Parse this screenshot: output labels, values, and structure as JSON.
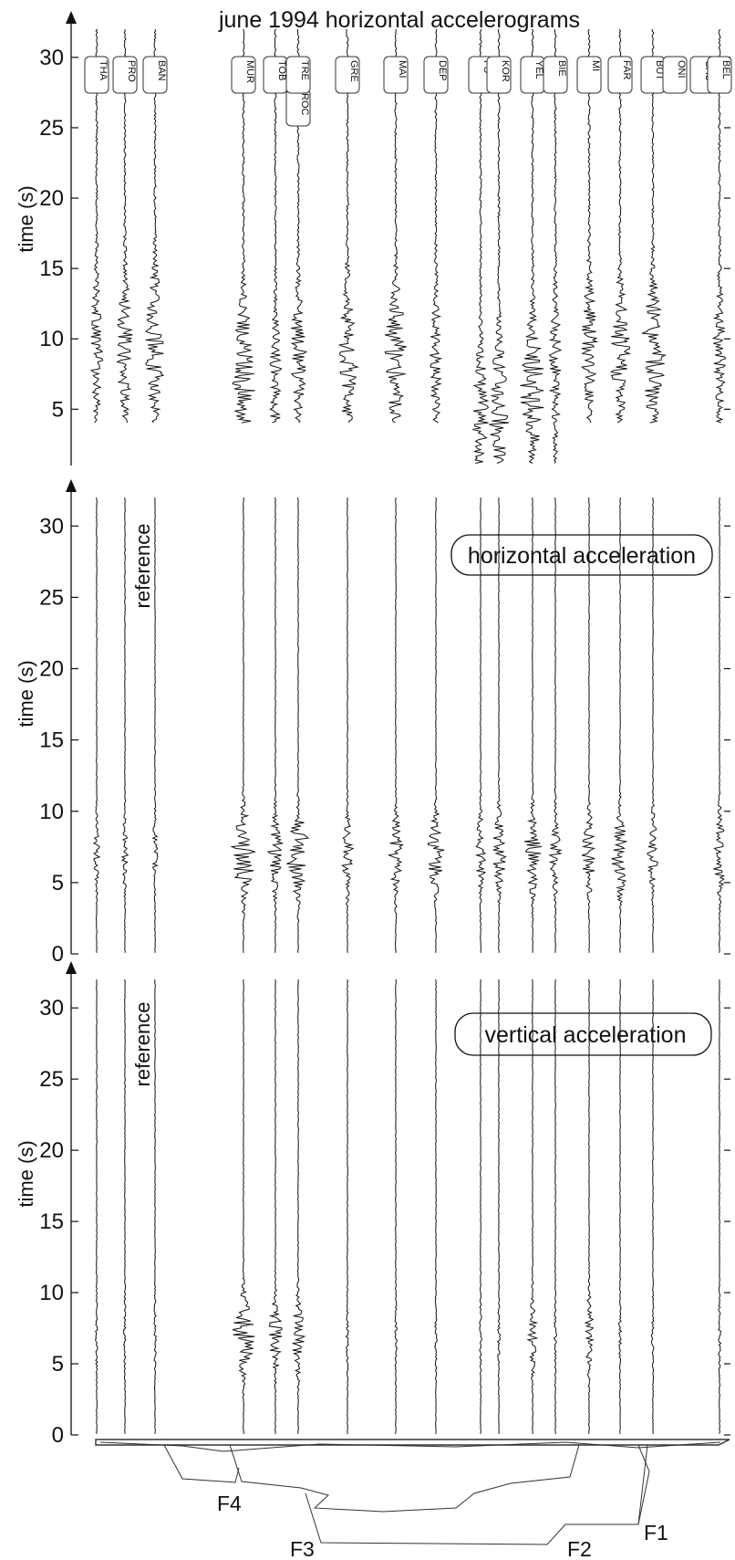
{
  "chart_data": [
    {
      "type": "line",
      "title": "june 1994 horizontal accelerograms",
      "ylabel": "time (s)",
      "ylim": [
        1,
        32
      ],
      "yticks": [
        5,
        10,
        15,
        20,
        25,
        30
      ],
      "stations": [
        "THA",
        "PRO",
        "BAN",
        "MUR",
        "TOB",
        "ROC",
        "TRE",
        "GRE",
        "MAI",
        "DEP",
        "FS",
        "KOR",
        "YEL",
        "BIE",
        "MI",
        "FAR",
        "BUT",
        "ONI",
        "CAU",
        "BEL"
      ],
      "traces": [
        {
          "station": "THA",
          "peak_time": 9.5
        },
        {
          "station": "PRO",
          "peak_time": 9.5
        },
        {
          "station": "BAN",
          "peak_time": 9.5
        },
        {
          "station": "MUR",
          "peak_time": 7.5
        },
        {
          "station": "TOB",
          "peak_time": 7.0
        },
        {
          "station": "ROC",
          "peak_time": 9.0
        },
        {
          "station": "GRE",
          "peak_time": 8.5
        },
        {
          "station": "MAI",
          "peak_time": 8.5
        },
        {
          "station": "DEP",
          "peak_time": 8.5
        },
        {
          "station": "FS",
          "peak_time": 4.5
        },
        {
          "station": "KOR",
          "peak_time": 5.0
        },
        {
          "station": "YEL",
          "peak_time": 6.5
        },
        {
          "station": "BIE",
          "peak_time": 8.0
        },
        {
          "station": "MI",
          "peak_time": 9.0
        },
        {
          "station": "FAR",
          "peak_time": 9.5
        },
        {
          "station": "CAU",
          "peak_time": 9.0
        }
      ]
    },
    {
      "type": "line",
      "annotation": "horizontal acceleration",
      "reference_label": "reference",
      "ylabel": "time (s)",
      "ylim": [
        0,
        32
      ],
      "yticks": [
        0,
        5,
        10,
        15,
        20,
        25,
        30
      ],
      "pulse_time": 7
    },
    {
      "type": "line",
      "annotation": "vertical acceleration",
      "reference_label": "reference",
      "ylabel": "time (s)",
      "ylim": [
        0,
        32
      ],
      "yticks": [
        0,
        5,
        10,
        15,
        20,
        25,
        30
      ],
      "pulse_time": 7
    }
  ],
  "cross_section": {
    "labels": [
      "F4",
      "F3",
      "F2",
      "F1"
    ]
  }
}
